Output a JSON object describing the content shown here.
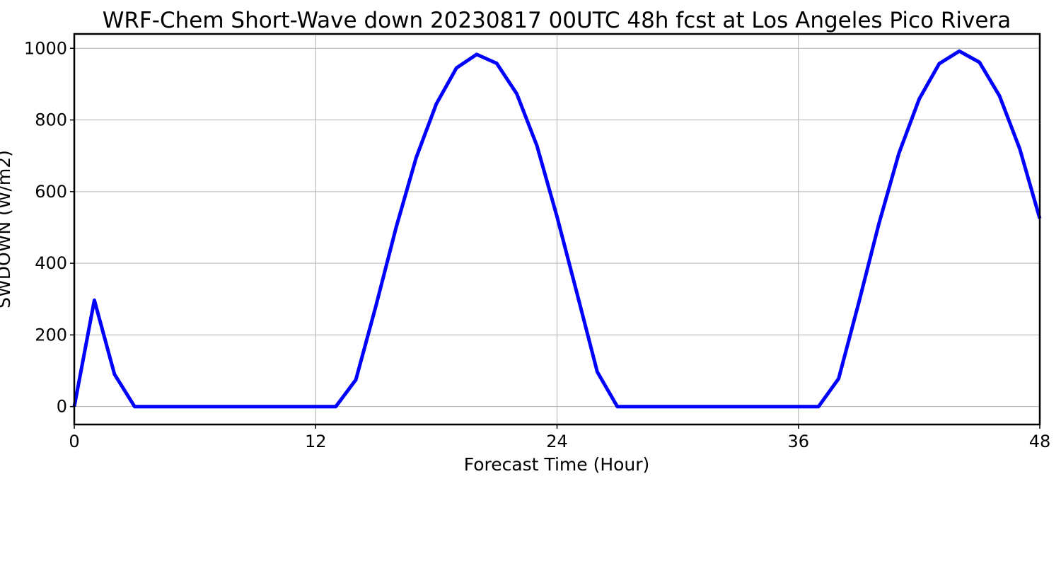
{
  "chart_data": {
    "type": "line",
    "title": "WRF-Chem Short-Wave down  20230817 00UTC 48h fcst at Los Angeles Pico Rivera",
    "xlabel": "Forecast Time (Hour)",
    "ylabel": "SWDOWN  (W/m2)",
    "xlim": [
      0,
      48
    ],
    "ylim": [
      -50,
      1040
    ],
    "xticks": [
      0,
      12,
      24,
      36,
      48
    ],
    "xtick_labels": [
      "0",
      "12",
      "24",
      "36",
      "48"
    ],
    "yticks": [
      0,
      200,
      400,
      600,
      800,
      1000
    ],
    "ytick_labels": [
      "0",
      "200",
      "400",
      "600",
      "800",
      "1000"
    ],
    "grid": true,
    "series": [
      {
        "color": "#0000ff",
        "x": [
          0,
          1,
          2,
          3,
          4,
          5,
          6,
          7,
          8,
          9,
          10,
          11,
          12,
          13,
          14,
          15,
          16,
          17,
          18,
          19,
          20,
          21,
          22,
          23,
          24,
          25,
          26,
          27,
          28,
          29,
          30,
          31,
          32,
          33,
          34,
          35,
          36,
          37,
          38,
          39,
          40,
          41,
          42,
          43,
          44,
          45,
          46,
          47,
          48
        ],
        "y": [
          0,
          297,
          90,
          0,
          0,
          0,
          0,
          0,
          0,
          0,
          0,
          0,
          0,
          0,
          75,
          282,
          500,
          695,
          845,
          945,
          983,
          958,
          873,
          728,
          530,
          315,
          97,
          0,
          0,
          0,
          0,
          0,
          0,
          0,
          0,
          0,
          0,
          0,
          78,
          290,
          510,
          707,
          858,
          957,
          992,
          961,
          867,
          720,
          525
        ]
      }
    ]
  }
}
